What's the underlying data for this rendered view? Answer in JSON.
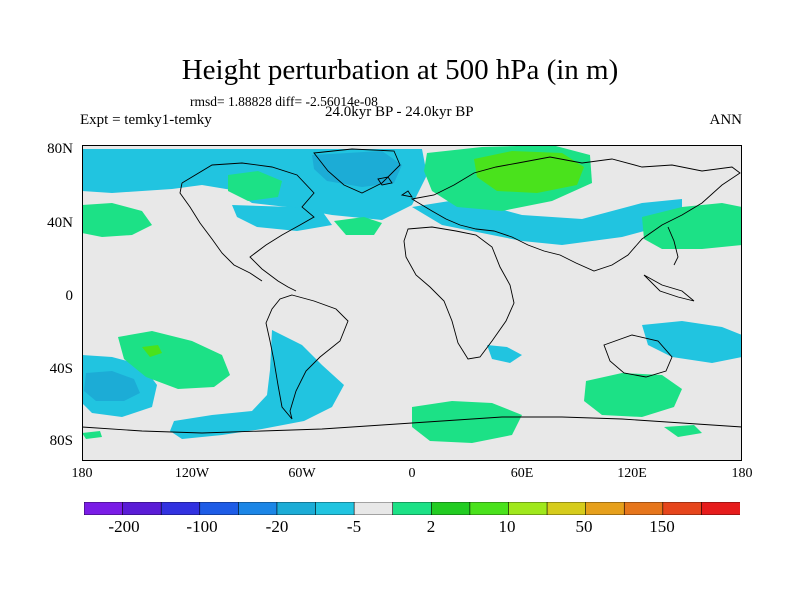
{
  "title": "Height perturbation at 500 hPa (in m)",
  "stats": "rmsd= 1.88828 diff= -2.56014e-08",
  "experiment": "Expt = temky1-temky",
  "period": "24.0kyr BP - 24.0kyr BP",
  "season": "ANN",
  "lat_ticks": [
    "80N",
    "40N",
    "0",
    "40S",
    "80S"
  ],
  "lon_ticks": [
    "180",
    "120W",
    "60W",
    "0",
    "60E",
    "120E",
    "180"
  ],
  "colorbar": {
    "colors": [
      "#7a1ce6",
      "#5a1cd6",
      "#3232e0",
      "#1e5ce6",
      "#1c86e6",
      "#1cacd6",
      "#21c4e0",
      "#e8e8e8",
      "#1ce186",
      "#22cc22",
      "#4ae21c",
      "#a0e81c",
      "#d6cc1c",
      "#e6a01c",
      "#e6761c",
      "#e6461c",
      "#e61c1c"
    ],
    "labels": [
      "-200",
      "-100",
      "-20",
      "-5",
      "2",
      "10",
      "50",
      "150"
    ]
  },
  "colors": {
    "background": "#e8e8e8",
    "negative_light": "#21c4e0",
    "negative_mid": "#1cacd6",
    "positive_light": "#1ce186",
    "positive_mid": "#4ae21c"
  }
}
